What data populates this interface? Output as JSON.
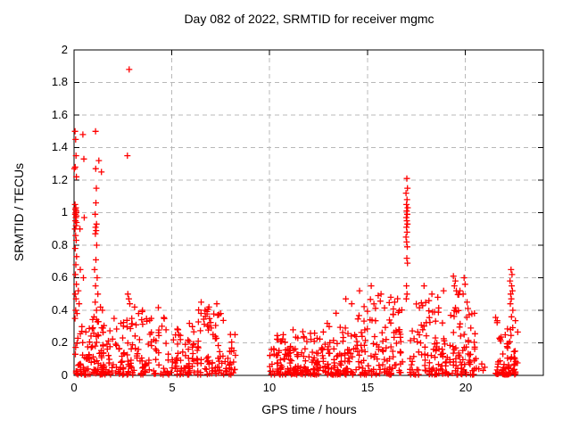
{
  "title": "Day 082 of 2022, SRMTID for receiver mgmc",
  "colors": {
    "marker": "#ff0000",
    "grid": "#b8b8b8",
    "axis": "#000000",
    "background": "#ffffff"
  },
  "chart_data": {
    "type": "scatter",
    "title": "Day 082 of 2022, SRMTID for receiver mgmc",
    "xlabel": "GPS time / hours",
    "ylabel": "SRMTID / TECUs",
    "xlim": [
      0,
      24
    ],
    "ylim": [
      0,
      2
    ],
    "grid": true,
    "legend": "none",
    "marker": {
      "shape": "plus",
      "color": "#ff0000"
    },
    "xtick_values": [
      0,
      5,
      10,
      15,
      20
    ],
    "xtick_labels": [
      "0",
      "5",
      "10",
      "15",
      "20"
    ],
    "ytick_values": [
      0,
      0.2,
      0.4,
      0.6,
      0.8,
      1,
      1.2,
      1.4,
      1.6,
      1.8,
      2
    ],
    "ytick_labels": [
      "0",
      "0.2",
      "0.4",
      "0.6",
      "0.8",
      "1",
      "1.2",
      "1.4",
      "1.6",
      "1.8",
      "2"
    ],
    "no_data_intervals": [
      [
        8.3,
        10.0
      ],
      [
        20.6,
        21.55
      ],
      [
        22.7,
        24.0
      ]
    ],
    "points": [
      [
        0.05,
        1.5
      ],
      [
        0.08,
        1.45
      ],
      [
        0.1,
        1.35
      ],
      [
        0.06,
        1.28
      ],
      [
        0.02,
        1.27
      ],
      [
        0.12,
        1.22
      ],
      [
        0.05,
        1.05
      ],
      [
        0.09,
        1.03
      ],
      [
        0.07,
        1.02
      ],
      [
        0.11,
        1.01
      ],
      [
        0.08,
        1.0
      ],
      [
        0.1,
        1.0
      ],
      [
        0.06,
        0.99
      ],
      [
        0.12,
        0.98
      ],
      [
        0.09,
        0.97
      ],
      [
        0.07,
        0.95
      ],
      [
        0.13,
        0.94
      ],
      [
        0.1,
        0.92
      ],
      [
        0.05,
        0.9
      ],
      [
        0.3,
        0.9
      ],
      [
        0.08,
        0.86
      ],
      [
        0.11,
        0.83
      ],
      [
        0.06,
        0.78
      ],
      [
        0.13,
        0.73
      ],
      [
        0.09,
        0.68
      ],
      [
        0.32,
        0.65
      ],
      [
        0.07,
        0.62
      ],
      [
        0.12,
        0.56
      ],
      [
        0.22,
        0.52
      ],
      [
        0.06,
        0.5
      ],
      [
        0.1,
        0.47
      ],
      [
        0.26,
        0.44
      ],
      [
        0.08,
        0.4
      ],
      [
        0.15,
        0.38
      ],
      [
        0.05,
        0.35
      ],
      [
        0.45,
        1.48
      ],
      [
        0.5,
        1.33
      ],
      [
        0.52,
        0.97
      ],
      [
        0.48,
        0.6
      ],
      [
        0.4,
        0.3
      ],
      [
        1.1,
        1.5
      ],
      [
        1.27,
        1.32
      ],
      [
        1.11,
        1.27
      ],
      [
        1.4,
        1.25
      ],
      [
        1.14,
        1.15
      ],
      [
        1.12,
        1.06
      ],
      [
        1.08,
        0.99
      ],
      [
        1.15,
        0.93
      ],
      [
        1.1,
        0.91
      ],
      [
        1.13,
        0.89
      ],
      [
        1.09,
        0.87
      ],
      [
        1.16,
        0.8
      ],
      [
        1.12,
        0.71
      ],
      [
        1.05,
        0.65
      ],
      [
        1.18,
        0.6
      ],
      [
        1.1,
        0.55
      ],
      [
        1.22,
        0.5
      ],
      [
        1.08,
        0.45
      ],
      [
        1.15,
        0.4
      ],
      [
        1.02,
        0.36
      ],
      [
        1.2,
        0.33
      ],
      [
        1.35,
        0.42
      ],
      [
        1.45,
        0.4
      ],
      [
        2.82,
        1.88
      ],
      [
        2.73,
        1.35
      ],
      [
        2.05,
        0.35
      ],
      [
        2.75,
        0.5
      ],
      [
        2.8,
        0.47
      ],
      [
        2.85,
        0.44
      ],
      [
        2.95,
        0.35
      ],
      [
        3.1,
        0.42
      ],
      [
        3.3,
        0.38
      ],
      [
        3.5,
        0.4
      ],
      [
        3.95,
        0.35
      ],
      [
        5.3,
        0.28
      ],
      [
        5.35,
        0.25
      ],
      [
        5.9,
        0.32
      ],
      [
        6.05,
        0.3
      ],
      [
        6.5,
        0.45
      ],
      [
        6.7,
        0.4
      ],
      [
        6.9,
        0.42
      ],
      [
        7.3,
        0.44
      ],
      [
        7.5,
        0.38
      ],
      [
        10.7,
        0.25
      ],
      [
        11.2,
        0.28
      ],
      [
        12.3,
        0.26
      ],
      [
        12.95,
        0.32
      ],
      [
        13.05,
        0.3
      ],
      [
        13.9,
        0.47
      ],
      [
        14.2,
        0.44
      ],
      [
        14.6,
        0.52
      ],
      [
        15.2,
        0.55
      ],
      [
        15.7,
        0.5
      ],
      [
        16.2,
        0.48
      ],
      [
        16.4,
        0.45
      ],
      [
        17.02,
        1.21
      ],
      [
        17.05,
        1.15
      ],
      [
        16.98,
        1.12
      ],
      [
        17.03,
        1.08
      ],
      [
        17.0,
        1.05
      ],
      [
        17.06,
        1.03
      ],
      [
        17.01,
        1.01
      ],
      [
        17.04,
        0.99
      ],
      [
        16.99,
        0.97
      ],
      [
        17.02,
        0.95
      ],
      [
        17.05,
        0.93
      ],
      [
        17.0,
        0.91
      ],
      [
        17.03,
        0.88
      ],
      [
        16.98,
        0.85
      ],
      [
        17.01,
        0.82
      ],
      [
        17.04,
        0.79
      ],
      [
        17.02,
        0.72
      ],
      [
        17.05,
        0.69
      ],
      [
        17.0,
        0.55
      ],
      [
        17.03,
        0.5
      ],
      [
        16.99,
        0.47
      ],
      [
        17.9,
        0.55
      ],
      [
        18.3,
        0.5
      ],
      [
        18.6,
        0.48
      ],
      [
        18.9,
        0.52
      ],
      [
        19.4,
        0.61
      ],
      [
        19.45,
        0.55
      ],
      [
        19.5,
        0.58
      ],
      [
        19.55,
        0.52
      ],
      [
        19.9,
        0.5
      ],
      [
        19.95,
        0.6
      ],
      [
        20.0,
        0.56
      ],
      [
        20.1,
        0.45
      ],
      [
        20.7,
        0.04
      ],
      [
        20.85,
        0.07
      ],
      [
        20.92,
        0.03
      ],
      [
        21.0,
        0.05
      ],
      [
        22.3,
        0.58
      ],
      [
        22.31,
        0.44
      ],
      [
        22.33,
        0.5
      ],
      [
        22.35,
        0.65
      ],
      [
        22.36,
        0.47
      ],
      [
        22.37,
        0.36
      ],
      [
        22.38,
        0.55
      ],
      [
        22.4,
        0.62
      ],
      [
        22.42,
        0.52
      ],
      [
        22.44,
        0.4
      ]
    ],
    "dense_bands": [
      {
        "x0": 0.05,
        "x1": 0.95,
        "count": 50,
        "ymax": 0.3
      },
      {
        "x0": 0.95,
        "x1": 1.5,
        "count": 50,
        "ymax": 0.4
      },
      {
        "x0": 1.5,
        "x1": 2.6,
        "count": 50,
        "ymax": 0.33
      },
      {
        "x0": 2.6,
        "x1": 4.7,
        "count": 85,
        "ymax": 0.42
      },
      {
        "x0": 4.7,
        "x1": 6.2,
        "count": 65,
        "ymax": 0.28
      },
      {
        "x0": 6.2,
        "x1": 7.7,
        "count": 70,
        "ymax": 0.42
      },
      {
        "x0": 7.7,
        "x1": 8.3,
        "count": 25,
        "ymax": 0.26
      },
      {
        "x0": 10.0,
        "x1": 11.5,
        "count": 90,
        "ymax": 0.24
      },
      {
        "x0": 11.5,
        "x1": 13.4,
        "count": 95,
        "ymax": 0.28
      },
      {
        "x0": 13.4,
        "x1": 14.8,
        "count": 75,
        "ymax": 0.42
      },
      {
        "x0": 14.8,
        "x1": 16.8,
        "count": 100,
        "ymax": 0.5
      },
      {
        "x0": 17.15,
        "x1": 18.6,
        "count": 70,
        "ymax": 0.46
      },
      {
        "x0": 18.6,
        "x1": 20.0,
        "count": 75,
        "ymax": 0.52
      },
      {
        "x0": 20.0,
        "x1": 20.6,
        "count": 30,
        "ymax": 0.42
      },
      {
        "x0": 21.55,
        "x1": 22.7,
        "count": 70,
        "ymax": 0.36
      }
    ]
  }
}
